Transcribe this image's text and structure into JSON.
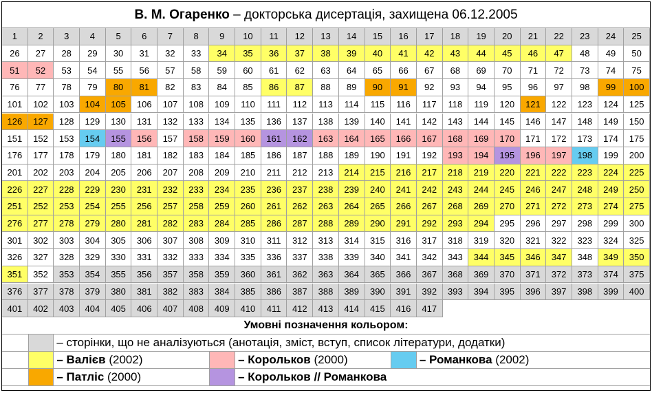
{
  "header": {
    "title_bold": "В. М. Огаренко",
    "title_rest": " – докторська дисертація, захищена 06.12.2005"
  },
  "palette": {
    "w": "#ffffff",
    "g": "#d9d9d9",
    "y": "#ffff66",
    "p": "#ffb7b7",
    "b": "#66ccf0",
    "o": "#f9a800",
    "v": "#b594e0"
  },
  "grid": {
    "rows": [
      [
        1,
        2,
        3,
        4,
        5,
        6,
        7,
        8,
        9,
        10,
        11,
        12,
        13,
        14,
        15,
        16,
        17,
        18,
        19,
        20,
        21,
        22,
        23,
        24,
        25
      ],
      [
        26,
        27,
        28,
        29,
        30,
        31,
        32,
        33,
        34,
        35,
        36,
        37,
        38,
        39,
        40,
        41,
        42,
        43,
        44,
        45,
        46,
        47,
        48,
        49,
        50
      ],
      [
        51,
        52,
        53,
        54,
        55,
        56,
        57,
        58,
        59,
        60,
        61,
        62,
        63,
        64,
        65,
        66,
        67,
        68,
        69,
        70,
        71,
        72,
        73,
        74,
        75
      ],
      [
        76,
        77,
        78,
        79,
        80,
        81,
        82,
        83,
        84,
        85,
        86,
        87,
        88,
        89,
        90,
        91,
        92,
        93,
        94,
        95,
        96,
        97,
        98,
        99,
        100
      ],
      [
        101,
        102,
        103,
        104,
        105,
        106,
        107,
        108,
        109,
        110,
        111,
        112,
        113,
        114,
        115,
        116,
        117,
        118,
        119,
        120,
        121,
        122,
        123,
        124,
        125
      ],
      [
        126,
        127,
        128,
        129,
        130,
        131,
        132,
        133,
        134,
        135,
        136,
        137,
        138,
        139,
        140,
        141,
        142,
        143,
        144,
        145,
        146,
        147,
        148,
        149,
        150
      ],
      [
        151,
        152,
        153,
        154,
        155,
        156,
        157,
        158,
        159,
        160,
        161,
        162,
        163,
        164,
        165,
        166,
        167,
        168,
        169,
        170,
        171,
        172,
        173,
        174,
        175
      ],
      [
        176,
        177,
        178,
        179,
        180,
        181,
        182,
        183,
        184,
        185,
        186,
        187,
        188,
        189,
        190,
        191,
        192,
        193,
        194,
        195,
        196,
        197,
        198,
        199,
        200
      ],
      [
        201,
        202,
        203,
        204,
        205,
        206,
        207,
        208,
        209,
        210,
        211,
        212,
        213,
        214,
        215,
        216,
        217,
        218,
        219,
        220,
        221,
        222,
        223,
        224,
        225
      ],
      [
        226,
        227,
        228,
        229,
        230,
        231,
        232,
        233,
        234,
        235,
        236,
        237,
        238,
        239,
        240,
        241,
        242,
        243,
        244,
        245,
        246,
        247,
        248,
        249,
        250
      ],
      [
        251,
        252,
        253,
        254,
        255,
        256,
        257,
        258,
        259,
        260,
        261,
        262,
        263,
        264,
        265,
        266,
        267,
        268,
        269,
        270,
        271,
        272,
        273,
        274,
        275
      ],
      [
        276,
        277,
        278,
        279,
        280,
        281,
        282,
        283,
        284,
        285,
        286,
        287,
        288,
        289,
        290,
        291,
        292,
        293,
        294,
        295,
        296,
        297,
        298,
        299,
        300
      ],
      [
        301,
        302,
        303,
        304,
        305,
        306,
        307,
        308,
        309,
        310,
        311,
        312,
        313,
        314,
        315,
        316,
        317,
        318,
        319,
        320,
        321,
        322,
        323,
        324,
        325
      ],
      [
        326,
        327,
        328,
        329,
        330,
        331,
        332,
        333,
        334,
        335,
        336,
        337,
        338,
        339,
        340,
        341,
        342,
        343,
        344,
        345,
        346,
        347,
        348,
        349,
        350
      ],
      [
        351,
        352,
        353,
        354,
        355,
        356,
        357,
        358,
        359,
        360,
        361,
        362,
        363,
        364,
        365,
        366,
        367,
        368,
        369,
        370,
        371,
        372,
        373,
        374,
        375
      ],
      [
        376,
        377,
        378,
        379,
        380,
        381,
        382,
        383,
        384,
        385,
        386,
        387,
        388,
        389,
        390,
        391,
        392,
        393,
        394,
        395,
        396,
        397,
        398,
        399,
        400
      ],
      [
        401,
        402,
        403,
        404,
        405,
        406,
        407,
        408,
        409,
        410,
        411,
        412,
        413,
        414,
        415,
        416,
        417
      ]
    ],
    "colors": [
      "ggggggggggggggggggggggggg",
      "wwwwwwwwyyyyyyyyyyyyyywww",
      "ppwwwwwwwwwwwwwwwwwwwwwww",
      "wwwwoowwwwyywwoowwwwwwwoo",
      "wwwoowwwwwwwwwwwwwwwowwww",
      "oowwwwwwwwwwwwwwwwwwwwwww",
      "wwwbvpwpppvvppppppppwwwww",
      "wwwwwwwwwwwwwwwwwppvppbww",
      "wwwwwwwwwwwwwyyyyyyyyyyyy",
      "yyyyyyyyyyyyyyyyyyyyyyyyy",
      "yyyyyyyyyyyyyyyyyyyyyyyyy",
      "yyyyyyyyyyyyyyyyyyywwwwww",
      "wwwwwwwwwwwwwwwwwwwwwwwww",
      "wwwwwwwwwwwwwwwwwwyyyywyy",
      "ywggggggggggggggggggggggg",
      "ggggggggggggggggggggggggg",
      "ggggggggggggggggg"
    ]
  },
  "legend": {
    "title": "Умовні позначення кольором:",
    "items": [
      {
        "key": "g",
        "normal": "– сторінки, що не аналізуються (анотація, зміст, вступ, список літератури, додатки)"
      },
      {
        "key": "y",
        "bold": "– Валієв",
        "normal": " (2002)"
      },
      {
        "key": "p",
        "bold": "– Корольков",
        "normal": " (2000)"
      },
      {
        "key": "b",
        "bold": "– Романкова",
        "normal": " (2002)"
      },
      {
        "key": "o",
        "bold": "– Патліс",
        "normal": " (2000)"
      },
      {
        "key": "v",
        "bold": "– Корольков // Романкова"
      }
    ]
  }
}
